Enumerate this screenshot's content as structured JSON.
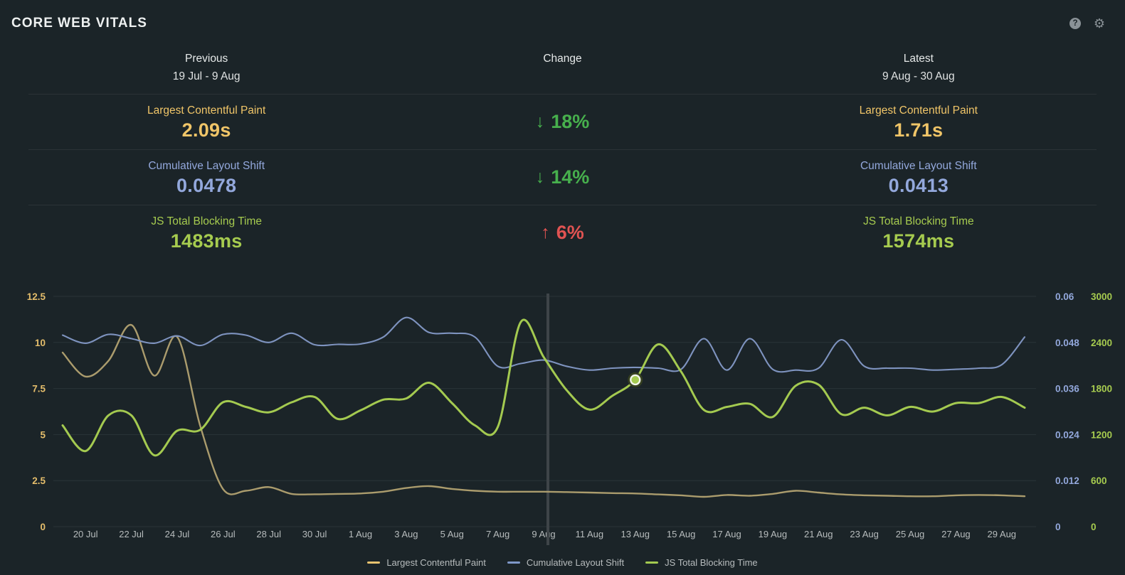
{
  "header": {
    "title": "CORE WEB VITALS",
    "icons": [
      {
        "name": "help-icon",
        "glyph": "?"
      },
      {
        "name": "settings-icon",
        "glyph": "⚙"
      }
    ]
  },
  "comparison": {
    "columns": [
      {
        "label": "Previous",
        "range": "19 Jul - 9 Aug"
      },
      {
        "label": "Change",
        "range": ""
      },
      {
        "label": "Latest",
        "range": "9 Aug - 30 Aug"
      }
    ],
    "rows": [
      {
        "metric": "Largest Contentful Paint",
        "previous": "2.09s",
        "latest": "1.71s",
        "change": "18%",
        "direction": "down",
        "metric_color": "#f0c568",
        "change_color": "#47b04d"
      },
      {
        "metric": "Cumulative Layout Shift",
        "previous": "0.0478",
        "latest": "0.0413",
        "change": "14%",
        "direction": "down",
        "metric_color": "#93a8dc",
        "change_color": "#47b04d"
      },
      {
        "metric": "JS Total Blocking Time",
        "previous": "1483ms",
        "latest": "1574ms",
        "change": "6%",
        "direction": "up",
        "metric_color": "#a6cb4f",
        "change_color": "#e05352"
      }
    ]
  },
  "chart_data": {
    "type": "line",
    "x": [
      "19 Jul",
      "20 Jul",
      "21 Jul",
      "22 Jul",
      "23 Jul",
      "24 Jul",
      "25 Jul",
      "26 Jul",
      "27 Jul",
      "28 Jul",
      "29 Jul",
      "30 Jul",
      "31 Jul",
      "1 Aug",
      "2 Aug",
      "3 Aug",
      "4 Aug",
      "5 Aug",
      "6 Aug",
      "7 Aug",
      "8 Aug",
      "9 Aug",
      "10 Aug",
      "11 Aug",
      "12 Aug",
      "13 Aug",
      "14 Aug",
      "15 Aug",
      "16 Aug",
      "17 Aug",
      "18 Aug",
      "19 Aug",
      "20 Aug",
      "21 Aug",
      "22 Aug",
      "23 Aug",
      "24 Aug",
      "25 Aug",
      "26 Aug",
      "27 Aug",
      "28 Aug",
      "29 Aug",
      "30 Aug"
    ],
    "x_tick_labels": [
      "20 Jul",
      "22 Jul",
      "24 Jul",
      "26 Jul",
      "28 Jul",
      "30 Jul",
      "1 Aug",
      "3 Aug",
      "5 Aug",
      "7 Aug",
      "9 Aug",
      "11 Aug",
      "13 Aug",
      "15 Aug",
      "17 Aug",
      "19 Aug",
      "21 Aug",
      "23 Aug",
      "25 Aug",
      "27 Aug",
      "29 Aug"
    ],
    "series": [
      {
        "name": "Largest Contentful Paint",
        "axis": "left",
        "unit": "s",
        "line_color": "#ab9c6d",
        "legend_color": "#e8c36f",
        "stroke_width": 2.4,
        "values": [
          9.45,
          8.15,
          9.0,
          10.95,
          8.2,
          10.3,
          5.5,
          2.05,
          1.95,
          2.15,
          1.78,
          1.76,
          1.78,
          1.8,
          1.9,
          2.1,
          2.2,
          2.05,
          1.95,
          1.9,
          1.9,
          1.9,
          1.88,
          1.85,
          1.82,
          1.8,
          1.75,
          1.7,
          1.62,
          1.72,
          1.68,
          1.78,
          1.95,
          1.85,
          1.75,
          1.7,
          1.68,
          1.65,
          1.65,
          1.7,
          1.72,
          1.7,
          1.65
        ]
      },
      {
        "name": "Cumulative Layout Shift",
        "axis": "right_cls",
        "unit": "",
        "line_color": "#7e93bf",
        "legend_color": "#7e98c8",
        "stroke_width": 2.1,
        "values": [
          0.0499,
          0.0478,
          0.0501,
          0.049,
          0.0478,
          0.0497,
          0.0472,
          0.0501,
          0.0499,
          0.048,
          0.0504,
          0.0474,
          0.0475,
          0.0476,
          0.0494,
          0.0545,
          0.0506,
          0.0504,
          0.0494,
          0.0418,
          0.0425,
          0.0434,
          0.0418,
          0.0408,
          0.0413,
          0.0415,
          0.0413,
          0.041,
          0.049,
          0.0408,
          0.049,
          0.041,
          0.0408,
          0.0413,
          0.0487,
          0.0418,
          0.0413,
          0.0413,
          0.0408,
          0.041,
          0.0413,
          0.0422,
          0.0494
        ]
      },
      {
        "name": "JS Total Blocking Time",
        "axis": "right_tbt",
        "unit": "ms",
        "line_color": "#a4ca50",
        "legend_color": "#a4ca50",
        "stroke_width": 3,
        "values": [
          1320,
          985,
          1450,
          1450,
          930,
          1250,
          1260,
          1620,
          1560,
          1490,
          1620,
          1690,
          1405,
          1515,
          1655,
          1670,
          1875,
          1610,
          1320,
          1300,
          2665,
          2210,
          1780,
          1525,
          1705,
          1913,
          2375,
          2020,
          1520,
          1560,
          1600,
          1430,
          1835,
          1850,
          1465,
          1550,
          1450,
          1560,
          1500,
          1610,
          1610,
          1690,
          1550
        ]
      }
    ],
    "axes": {
      "left": {
        "ticks": [
          "12.5",
          "10",
          "7.5",
          "5",
          "2.5",
          "0"
        ],
        "min": 0,
        "max": 12.5,
        "color": "#e4bd6b"
      },
      "right_cls": {
        "ticks": [
          "0.06",
          "0.048",
          "0.036",
          "0.024",
          "0.012",
          "0"
        ],
        "min": 0,
        "max": 0.06,
        "color": "#93a8dc"
      },
      "right_tbt": {
        "ticks": [
          "3000",
          "2400",
          "1800",
          "1200",
          "600",
          "0"
        ],
        "min": 0,
        "max": 3000,
        "color": "#a6cb4f"
      }
    },
    "annotation": {
      "divider_date": "9 Aug",
      "highlight_date": "13 Aug",
      "highlight_series": "JS Total Blocking Time",
      "highlight_value": 1913
    },
    "legend_position": "bottom",
    "grid": true,
    "grid_color": "#2b3439",
    "x_label_color": "#b7bcbd",
    "divider_color": "#3e4448"
  }
}
